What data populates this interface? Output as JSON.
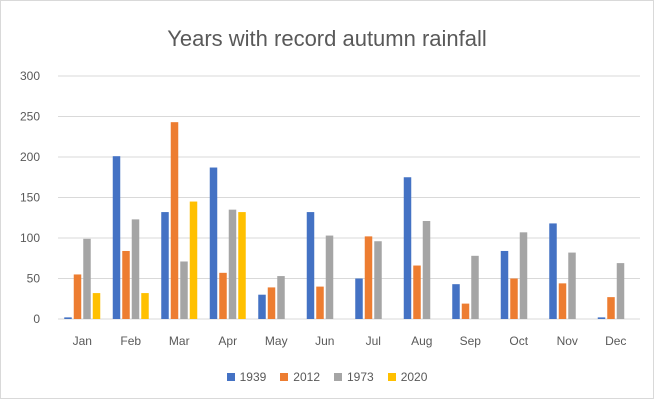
{
  "chart_data": {
    "type": "bar",
    "title": "Years with record autumn rainfall",
    "xlabel": "",
    "ylabel": "",
    "categories": [
      "Jan",
      "Feb",
      "Mar",
      "Apr",
      "May",
      "Jun",
      "Jul",
      "Aug",
      "Sep",
      "Oct",
      "Nov",
      "Dec"
    ],
    "ylim": [
      0,
      300
    ],
    "yticks": [
      0,
      50,
      100,
      150,
      200,
      250,
      300
    ],
    "grid": true,
    "legend_position": "bottom",
    "series": [
      {
        "name": "1939",
        "color": "#4472C4",
        "values": [
          2,
          201,
          132,
          187,
          30,
          132,
          50,
          175,
          43,
          84,
          118,
          2
        ]
      },
      {
        "name": "2012",
        "color": "#ED7D31",
        "values": [
          55,
          84,
          243,
          57,
          39,
          40,
          102,
          66,
          19,
          50,
          44,
          27
        ]
      },
      {
        "name": "1973",
        "color": "#A5A5A5",
        "values": [
          99,
          123,
          71,
          135,
          53,
          103,
          96,
          121,
          78,
          107,
          82,
          69
        ]
      },
      {
        "name": "2020",
        "color": "#FFC000",
        "values": [
          32,
          32,
          145,
          132,
          0,
          0,
          0,
          0,
          0,
          0,
          0,
          0
        ]
      }
    ]
  }
}
